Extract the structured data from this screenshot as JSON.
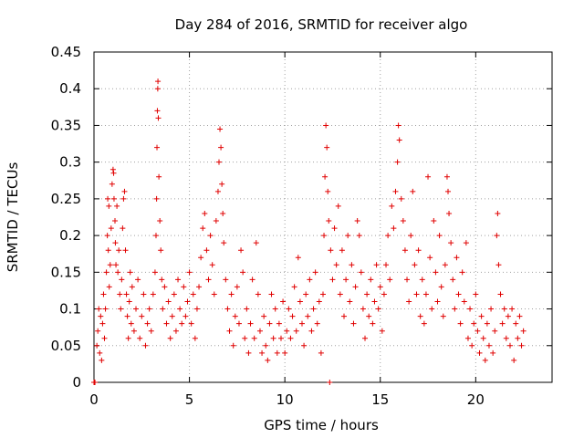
{
  "chart_data": {
    "type": "scatter",
    "title": "Day 284 of 2016, SRMTID for receiver algo",
    "xlabel": "GPS time / hours",
    "ylabel": "SRMTID / TECUs",
    "xlim": [
      0,
      24
    ],
    "ylim": [
      0,
      0.45
    ],
    "xticks": [
      0,
      5,
      10,
      15,
      20
    ],
    "xtick_labels": [
      "0",
      "5",
      "10",
      "15",
      "20"
    ],
    "yticks": [
      0,
      0.05,
      0.1,
      0.15,
      0.2,
      0.25,
      0.3,
      0.35,
      0.4,
      0.45
    ],
    "ytick_labels": [
      "0",
      "0.05",
      "0.1",
      "0.15",
      "0.2",
      "0.25",
      "0.3",
      "0.35",
      "0.4",
      "0.45"
    ],
    "grid": true,
    "marker": "plus",
    "color": "#e00000",
    "series": [
      {
        "name": "SRMTID",
        "points": [
          [
            0.0,
            0.0
          ],
          [
            0.02,
            0.0
          ],
          [
            0.05,
            0.0
          ],
          [
            0.15,
            0.05
          ],
          [
            0.2,
            0.07
          ],
          [
            0.25,
            0.1
          ],
          [
            0.3,
            0.04
          ],
          [
            0.35,
            0.09
          ],
          [
            0.4,
            0.03
          ],
          [
            0.45,
            0.08
          ],
          [
            0.5,
            0.12
          ],
          [
            0.55,
            0.06
          ],
          [
            0.6,
            0.1
          ],
          [
            0.65,
            0.15
          ],
          [
            0.7,
            0.2
          ],
          [
            0.72,
            0.25
          ],
          [
            0.75,
            0.18
          ],
          [
            0.78,
            0.24
          ],
          [
            0.8,
            0.13
          ],
          [
            0.85,
            0.16
          ],
          [
            0.9,
            0.21
          ],
          [
            0.95,
            0.27
          ],
          [
            1.0,
            0.29
          ],
          [
            1.03,
            0.285
          ],
          [
            1.05,
            0.25
          ],
          [
            1.1,
            0.22
          ],
          [
            1.12,
            0.19
          ],
          [
            1.15,
            0.16
          ],
          [
            1.2,
            0.24
          ],
          [
            1.25,
            0.15
          ],
          [
            1.3,
            0.18
          ],
          [
            1.35,
            0.12
          ],
          [
            1.4,
            0.1
          ],
          [
            1.45,
            0.14
          ],
          [
            1.5,
            0.21
          ],
          [
            1.55,
            0.25
          ],
          [
            1.6,
            0.26
          ],
          [
            1.65,
            0.18
          ],
          [
            1.7,
            0.12
          ],
          [
            1.75,
            0.09
          ],
          [
            1.8,
            0.06
          ],
          [
            1.85,
            0.11
          ],
          [
            1.9,
            0.15
          ],
          [
            1.95,
            0.08
          ],
          [
            2.0,
            0.13
          ],
          [
            2.1,
            0.07
          ],
          [
            2.2,
            0.1
          ],
          [
            2.3,
            0.14
          ],
          [
            2.4,
            0.06
          ],
          [
            2.5,
            0.09
          ],
          [
            2.6,
            0.12
          ],
          [
            2.7,
            0.05
          ],
          [
            2.8,
            0.08
          ],
          [
            2.9,
            0.1
          ],
          [
            3.0,
            0.07
          ],
          [
            3.1,
            0.12
          ],
          [
            3.2,
            0.15
          ],
          [
            3.25,
            0.2
          ],
          [
            3.28,
            0.25
          ],
          [
            3.3,
            0.32
          ],
          [
            3.32,
            0.37
          ],
          [
            3.34,
            0.4
          ],
          [
            3.35,
            0.41
          ],
          [
            3.37,
            0.36
          ],
          [
            3.4,
            0.28
          ],
          [
            3.45,
            0.22
          ],
          [
            3.5,
            0.18
          ],
          [
            3.55,
            0.14
          ],
          [
            3.6,
            0.1
          ],
          [
            3.7,
            0.13
          ],
          [
            3.8,
            0.08
          ],
          [
            3.9,
            0.11
          ],
          [
            4.0,
            0.06
          ],
          [
            4.1,
            0.09
          ],
          [
            4.2,
            0.12
          ],
          [
            4.3,
            0.07
          ],
          [
            4.4,
            0.14
          ],
          [
            4.5,
            0.1
          ],
          [
            4.6,
            0.08
          ],
          [
            4.7,
            0.13
          ],
          [
            4.8,
            0.09
          ],
          [
            4.9,
            0.11
          ],
          [
            5.0,
            0.15
          ],
          [
            5.1,
            0.08
          ],
          [
            5.2,
            0.12
          ],
          [
            5.3,
            0.06
          ],
          [
            5.4,
            0.1
          ],
          [
            5.5,
            0.13
          ],
          [
            5.6,
            0.17
          ],
          [
            5.7,
            0.21
          ],
          [
            5.8,
            0.23
          ],
          [
            5.9,
            0.18
          ],
          [
            6.0,
            0.14
          ],
          [
            6.1,
            0.2
          ],
          [
            6.2,
            0.16
          ],
          [
            6.3,
            0.12
          ],
          [
            6.4,
            0.22
          ],
          [
            6.5,
            0.26
          ],
          [
            6.55,
            0.3
          ],
          [
            6.6,
            0.345
          ],
          [
            6.65,
            0.32
          ],
          [
            6.7,
            0.27
          ],
          [
            6.75,
            0.23
          ],
          [
            6.8,
            0.19
          ],
          [
            6.9,
            0.14
          ],
          [
            7.0,
            0.1
          ],
          [
            7.1,
            0.07
          ],
          [
            7.2,
            0.12
          ],
          [
            7.3,
            0.05
          ],
          [
            7.4,
            0.09
          ],
          [
            7.5,
            0.13
          ],
          [
            7.6,
            0.08
          ],
          [
            7.7,
            0.18
          ],
          [
            7.8,
            0.15
          ],
          [
            7.9,
            0.06
          ],
          [
            8.0,
            0.1
          ],
          [
            8.1,
            0.04
          ],
          [
            8.2,
            0.08
          ],
          [
            8.3,
            0.14
          ],
          [
            8.4,
            0.06
          ],
          [
            8.5,
            0.19
          ],
          [
            8.6,
            0.12
          ],
          [
            8.7,
            0.07
          ],
          [
            8.8,
            0.04
          ],
          [
            8.9,
            0.09
          ],
          [
            9.0,
            0.05
          ],
          [
            9.1,
            0.03
          ],
          [
            9.2,
            0.08
          ],
          [
            9.3,
            0.12
          ],
          [
            9.4,
            0.06
          ],
          [
            9.5,
            0.1
          ],
          [
            9.6,
            0.04
          ],
          [
            9.7,
            0.08
          ],
          [
            9.8,
            0.06
          ],
          [
            9.9,
            0.11
          ],
          [
            10.0,
            0.04
          ],
          [
            10.1,
            0.07
          ],
          [
            10.2,
            0.1
          ],
          [
            10.3,
            0.06
          ],
          [
            10.4,
            0.09
          ],
          [
            10.5,
            0.13
          ],
          [
            10.6,
            0.07
          ],
          [
            10.7,
            0.17
          ],
          [
            10.8,
            0.11
          ],
          [
            10.9,
            0.08
          ],
          [
            11.0,
            0.05
          ],
          [
            11.1,
            0.12
          ],
          [
            11.2,
            0.09
          ],
          [
            11.3,
            0.14
          ],
          [
            11.4,
            0.07
          ],
          [
            11.5,
            0.1
          ],
          [
            11.6,
            0.15
          ],
          [
            11.7,
            0.08
          ],
          [
            11.8,
            0.11
          ],
          [
            11.9,
            0.04
          ],
          [
            12.0,
            0.12
          ],
          [
            12.05,
            0.2
          ],
          [
            12.1,
            0.28
          ],
          [
            12.15,
            0.35
          ],
          [
            12.2,
            0.32
          ],
          [
            12.25,
            0.26
          ],
          [
            12.3,
            0.22
          ],
          [
            12.35,
            0.0
          ],
          [
            12.4,
            0.18
          ],
          [
            12.5,
            0.14
          ],
          [
            12.6,
            0.21
          ],
          [
            12.7,
            0.16
          ],
          [
            12.8,
            0.24
          ],
          [
            12.9,
            0.12
          ],
          [
            13.0,
            0.18
          ],
          [
            13.1,
            0.09
          ],
          [
            13.2,
            0.14
          ],
          [
            13.3,
            0.2
          ],
          [
            13.4,
            0.11
          ],
          [
            13.5,
            0.16
          ],
          [
            13.6,
            0.08
          ],
          [
            13.7,
            0.13
          ],
          [
            13.8,
            0.22
          ],
          [
            13.9,
            0.2
          ],
          [
            14.0,
            0.15
          ],
          [
            14.1,
            0.1
          ],
          [
            14.2,
            0.06
          ],
          [
            14.3,
            0.12
          ],
          [
            14.4,
            0.09
          ],
          [
            14.5,
            0.14
          ],
          [
            14.6,
            0.08
          ],
          [
            14.7,
            0.11
          ],
          [
            14.8,
            0.16
          ],
          [
            14.9,
            0.1
          ],
          [
            15.0,
            0.13
          ],
          [
            15.1,
            0.07
          ],
          [
            15.2,
            0.12
          ],
          [
            15.3,
            0.16
          ],
          [
            15.4,
            0.2
          ],
          [
            15.5,
            0.14
          ],
          [
            15.6,
            0.24
          ],
          [
            15.7,
            0.21
          ],
          [
            15.8,
            0.26
          ],
          [
            15.9,
            0.3
          ],
          [
            15.95,
            0.35
          ],
          [
            16.0,
            0.33
          ],
          [
            16.1,
            0.25
          ],
          [
            16.2,
            0.22
          ],
          [
            16.3,
            0.18
          ],
          [
            16.4,
            0.14
          ],
          [
            16.5,
            0.11
          ],
          [
            16.6,
            0.2
          ],
          [
            16.7,
            0.26
          ],
          [
            16.8,
            0.16
          ],
          [
            16.9,
            0.12
          ],
          [
            17.0,
            0.18
          ],
          [
            17.1,
            0.09
          ],
          [
            17.2,
            0.14
          ],
          [
            17.3,
            0.08
          ],
          [
            17.4,
            0.12
          ],
          [
            17.5,
            0.28
          ],
          [
            17.6,
            0.17
          ],
          [
            17.7,
            0.1
          ],
          [
            17.8,
            0.22
          ],
          [
            17.9,
            0.15
          ],
          [
            18.0,
            0.11
          ],
          [
            18.1,
            0.2
          ],
          [
            18.2,
            0.13
          ],
          [
            18.3,
            0.09
          ],
          [
            18.4,
            0.16
          ],
          [
            18.5,
            0.28
          ],
          [
            18.55,
            0.26
          ],
          [
            18.6,
            0.23
          ],
          [
            18.7,
            0.19
          ],
          [
            18.8,
            0.14
          ],
          [
            18.9,
            0.1
          ],
          [
            19.0,
            0.17
          ],
          [
            19.1,
            0.12
          ],
          [
            19.2,
            0.08
          ],
          [
            19.3,
            0.15
          ],
          [
            19.4,
            0.11
          ],
          [
            19.5,
            0.19
          ],
          [
            19.6,
            0.06
          ],
          [
            19.7,
            0.1
          ],
          [
            19.8,
            0.05
          ],
          [
            19.9,
            0.08
          ],
          [
            20.0,
            0.12
          ],
          [
            20.1,
            0.07
          ],
          [
            20.2,
            0.04
          ],
          [
            20.3,
            0.09
          ],
          [
            20.4,
            0.06
          ],
          [
            20.5,
            0.03
          ],
          [
            20.6,
            0.08
          ],
          [
            20.7,
            0.05
          ],
          [
            20.8,
            0.1
          ],
          [
            20.9,
            0.04
          ],
          [
            21.0,
            0.07
          ],
          [
            21.1,
            0.2
          ],
          [
            21.15,
            0.23
          ],
          [
            21.2,
            0.16
          ],
          [
            21.3,
            0.12
          ],
          [
            21.4,
            0.08
          ],
          [
            21.5,
            0.1
          ],
          [
            21.6,
            0.06
          ],
          [
            21.7,
            0.09
          ],
          [
            21.8,
            0.05
          ],
          [
            21.9,
            0.1
          ],
          [
            22.0,
            0.03
          ],
          [
            22.1,
            0.08
          ],
          [
            22.2,
            0.06
          ],
          [
            22.3,
            0.09
          ],
          [
            22.4,
            0.05
          ],
          [
            22.5,
            0.07
          ]
        ]
      }
    ]
  }
}
